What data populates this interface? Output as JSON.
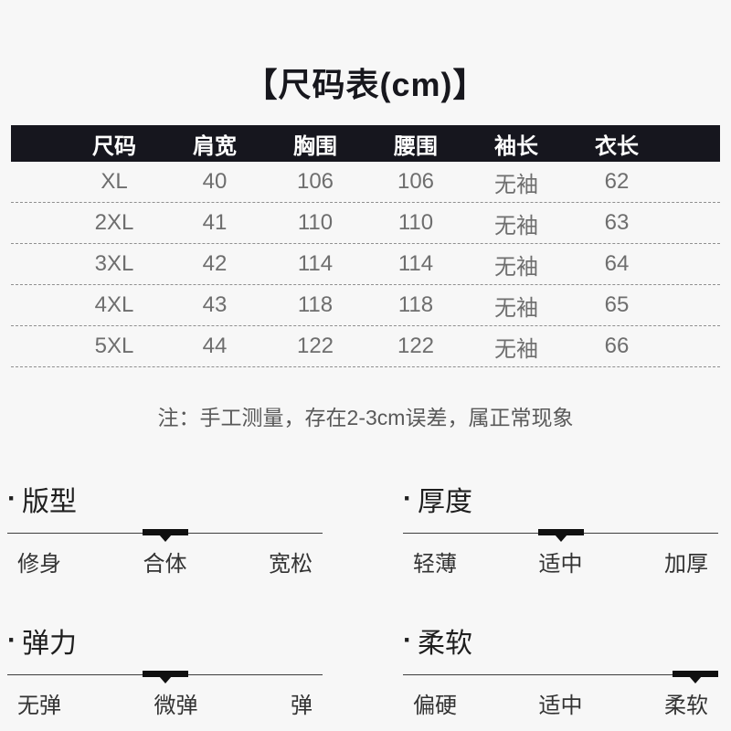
{
  "title": "【尺码表(cm)】",
  "table": {
    "headers": [
      "尺码",
      "肩宽",
      "胸围",
      "腰围",
      "袖长",
      "衣长"
    ],
    "rows": [
      [
        "XL",
        "40",
        "106",
        "106",
        "无袖",
        "62"
      ],
      [
        "2XL",
        "41",
        "110",
        "110",
        "无袖",
        "63"
      ],
      [
        "3XL",
        "42",
        "114",
        "114",
        "无袖",
        "64"
      ],
      [
        "4XL",
        "43",
        "118",
        "118",
        "无袖",
        "65"
      ],
      [
        "5XL",
        "44",
        "122",
        "122",
        "无袖",
        "66"
      ]
    ]
  },
  "note": "注：手工测量，存在2-3cm误差，属正常现象",
  "ui": {
    "bullet": "·"
  },
  "colors": {
    "page_bg": "#f7f7f7",
    "header_bg": "#16161e",
    "header_text": "#ffffff",
    "marker": "#101010"
  },
  "scales": [
    {
      "label": "版型",
      "options": [
        "修身",
        "合体",
        "宽松"
      ],
      "selected": 1
    },
    {
      "label": "厚度",
      "options": [
        "轻薄",
        "适中",
        "加厚"
      ],
      "selected": 1
    },
    {
      "label": "弹力",
      "options": [
        "无弹",
        "微弹",
        "弹"
      ],
      "selected": 1
    },
    {
      "label": "柔软",
      "options": [
        "偏硬",
        "适中",
        "柔软"
      ],
      "selected": 2
    }
  ]
}
